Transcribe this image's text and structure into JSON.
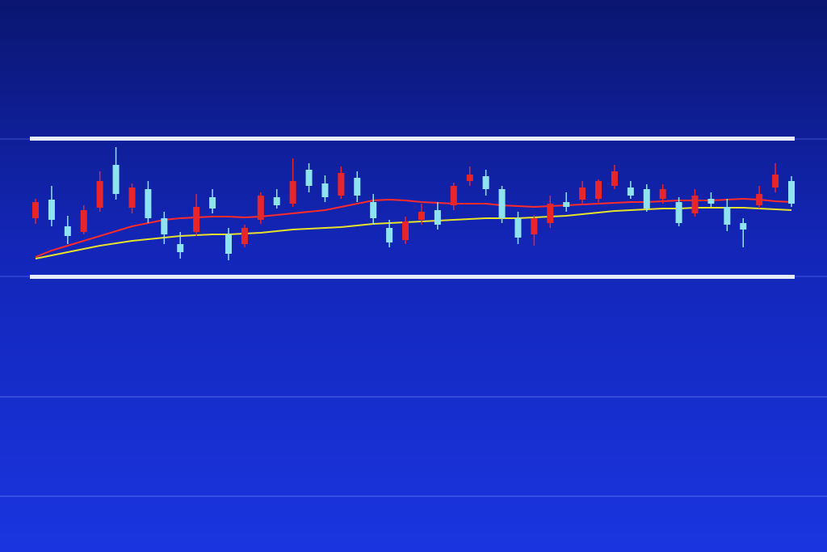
{
  "chart_data": {
    "type": "candlestick",
    "up_color": "#e8262a",
    "down_color": "#8fe3f0",
    "ylim": [
      0,
      170
    ],
    "open": [
      72,
      95,
      62,
      55,
      85,
      138,
      85,
      108,
      72,
      40,
      55,
      98,
      52,
      40,
      70,
      98,
      90,
      132,
      115,
      100,
      122,
      92,
      60,
      45,
      70,
      82,
      88,
      118,
      124,
      108,
      72,
      52,
      66,
      92,
      95,
      96,
      112,
      110,
      108,
      96,
      92,
      78,
      96,
      86,
      66,
      88,
      110,
      118
    ],
    "high": [
      96,
      112,
      75,
      88,
      130,
      160,
      115,
      118,
      80,
      55,
      102,
      108,
      60,
      64,
      104,
      108,
      146,
      140,
      125,
      136,
      130,
      102,
      70,
      74,
      90,
      92,
      116,
      136,
      132,
      112,
      80,
      76,
      100,
      104,
      118,
      120,
      138,
      118,
      114,
      114,
      98,
      108,
      104,
      96,
      72,
      112,
      140,
      124
    ],
    "low": [
      65,
      62,
      40,
      52,
      80,
      95,
      78,
      66,
      40,
      22,
      50,
      78,
      20,
      36,
      65,
      84,
      86,
      104,
      92,
      96,
      92,
      64,
      36,
      40,
      64,
      58,
      82,
      112,
      100,
      66,
      40,
      38,
      60,
      80,
      88,
      90,
      108,
      96,
      80,
      90,
      62,
      74,
      86,
      56,
      36,
      84,
      104,
      86
    ],
    "close": [
      92,
      70,
      50,
      82,
      118,
      102,
      110,
      72,
      52,
      30,
      86,
      84,
      28,
      60,
      100,
      88,
      118,
      112,
      98,
      128,
      100,
      72,
      42,
      68,
      80,
      64,
      112,
      126,
      108,
      72,
      48,
      72,
      90,
      86,
      110,
      118,
      130,
      100,
      84,
      108,
      66,
      100,
      90,
      64,
      58,
      102,
      126,
      90
    ],
    "moving_averages": [
      {
        "color": "#ff2a2a",
        "values": [
          24,
          32,
          38,
          44,
          50,
          56,
          62,
          66,
          70,
          72,
          73,
          74,
          74,
          73,
          74,
          76,
          78,
          80,
          82,
          86,
          90,
          94,
          95,
          94,
          92,
          91,
          90,
          90,
          90,
          88,
          87,
          86,
          87,
          88,
          89,
          90,
          91,
          92,
          92,
          93,
          94,
          94,
          94,
          95,
          96,
          95,
          93,
          92
        ]
      },
      {
        "color": "#e6e22a",
        "values": [
          22,
          26,
          30,
          34,
          38,
          41,
          44,
          46,
          48,
          50,
          51,
          52,
          52,
          53,
          54,
          56,
          58,
          59,
          60,
          61,
          63,
          65,
          66,
          67,
          68,
          69,
          70,
          71,
          72,
          72,
          72,
          73,
          74,
          75,
          77,
          79,
          81,
          82,
          83,
          84,
          84,
          85,
          85,
          85,
          85,
          84,
          83,
          82
        ]
      }
    ]
  }
}
